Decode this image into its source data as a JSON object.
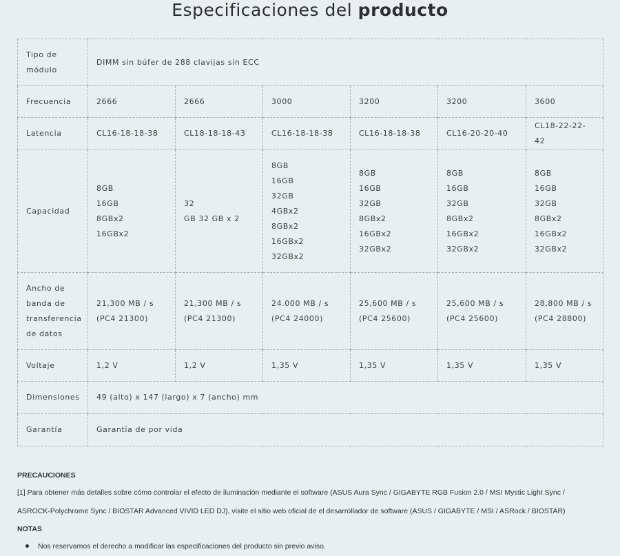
{
  "title": {
    "part1": "Especificaciones del",
    "part2": "producto"
  },
  "table": {
    "module_type": {
      "label_line1": "Tipo de",
      "label_line2": "módulo",
      "value": "DIMM sin búfer de 288 clavijas sin ECC"
    },
    "frequency": {
      "label": "Frecuencia",
      "values": [
        "2666",
        "2666",
        "3000",
        "3200",
        "3200",
        "3600"
      ]
    },
    "latency": {
      "label": "Latencia",
      "values": [
        "CL16-18-18-38",
        "CL18-18-18-43",
        "CL16-18-18-38",
        "CL16-18-18-38",
        "CL16-20-20-40",
        "CL18-22-22-42"
      ]
    },
    "capacity": {
      "label": "Capacidad",
      "values": [
        [
          "8GB",
          "16GB",
          "8GBx2",
          "16GBx2"
        ],
        [
          "32",
          "GB 32 GB x 2"
        ],
        [
          "8GB",
          "16GB",
          "32GB",
          "4GBx2",
          "8GBx2",
          "16GBx2",
          "32GBx2"
        ],
        [
          "8GB",
          "16GB",
          "32GB",
          "8GBx2",
          "16GBx2",
          "32GBx2"
        ],
        [
          "8GB",
          "16GB",
          "32GB",
          "8GBx2",
          "16GBx2",
          "32GBx2"
        ],
        [
          "8GB",
          "16GB",
          "32GB",
          "8GBx2",
          "16GBx2",
          "32GBx2"
        ]
      ]
    },
    "bandwidth": {
      "label_lines": [
        "Ancho de",
        "banda de",
        "transferencia",
        "de datos"
      ],
      "values": [
        [
          "21,300 MB / s",
          "(PC4 21300)"
        ],
        [
          "21,300 MB / s",
          "(PC4 21300)"
        ],
        [
          "24.000 MB / s",
          "(PC4 24000)"
        ],
        [
          "25,600 MB / s",
          "(PC4 25600)"
        ],
        [
          "25,600 MB / s",
          "(PC4 25600)"
        ],
        [
          "28,800 MB / s",
          "(PC4 28800)"
        ]
      ]
    },
    "voltage": {
      "label": "Voltaje",
      "values": [
        "1,2 V",
        "1,2 V",
        "1,35 V",
        "1,35 V",
        "1,35 V",
        "1,35 V"
      ]
    },
    "dimensions": {
      "label": "Dimensiones",
      "value": "49 (alto) x 147 (largo) x 7 (ancho) mm"
    },
    "warranty": {
      "label": "Garantía",
      "value": "Garantía de por vida"
    }
  },
  "precautions": {
    "heading": "PRECAUCIONES",
    "line1": "[1] Para obtener más detalles sobre cómo controlar el efecto de iluminación mediante el software (ASUS Aura Sync / GIGABYTE RGB Fusion 2.0 / MSI Mystic Light Sync /",
    "line2": "ASROCK-Polychrome Sync / BIOSTAR Advanced VIVID LED DJ), visite el sitio web oficial de el desarrollador de software (ASUS / GIGABYTE / MSI / ASRock / BIOSTAR)"
  },
  "notes": {
    "heading": "NOTAS",
    "items": [
      "Nos reservamos el derecho a modificar las especificaciones del producto sin previo aviso."
    ]
  }
}
